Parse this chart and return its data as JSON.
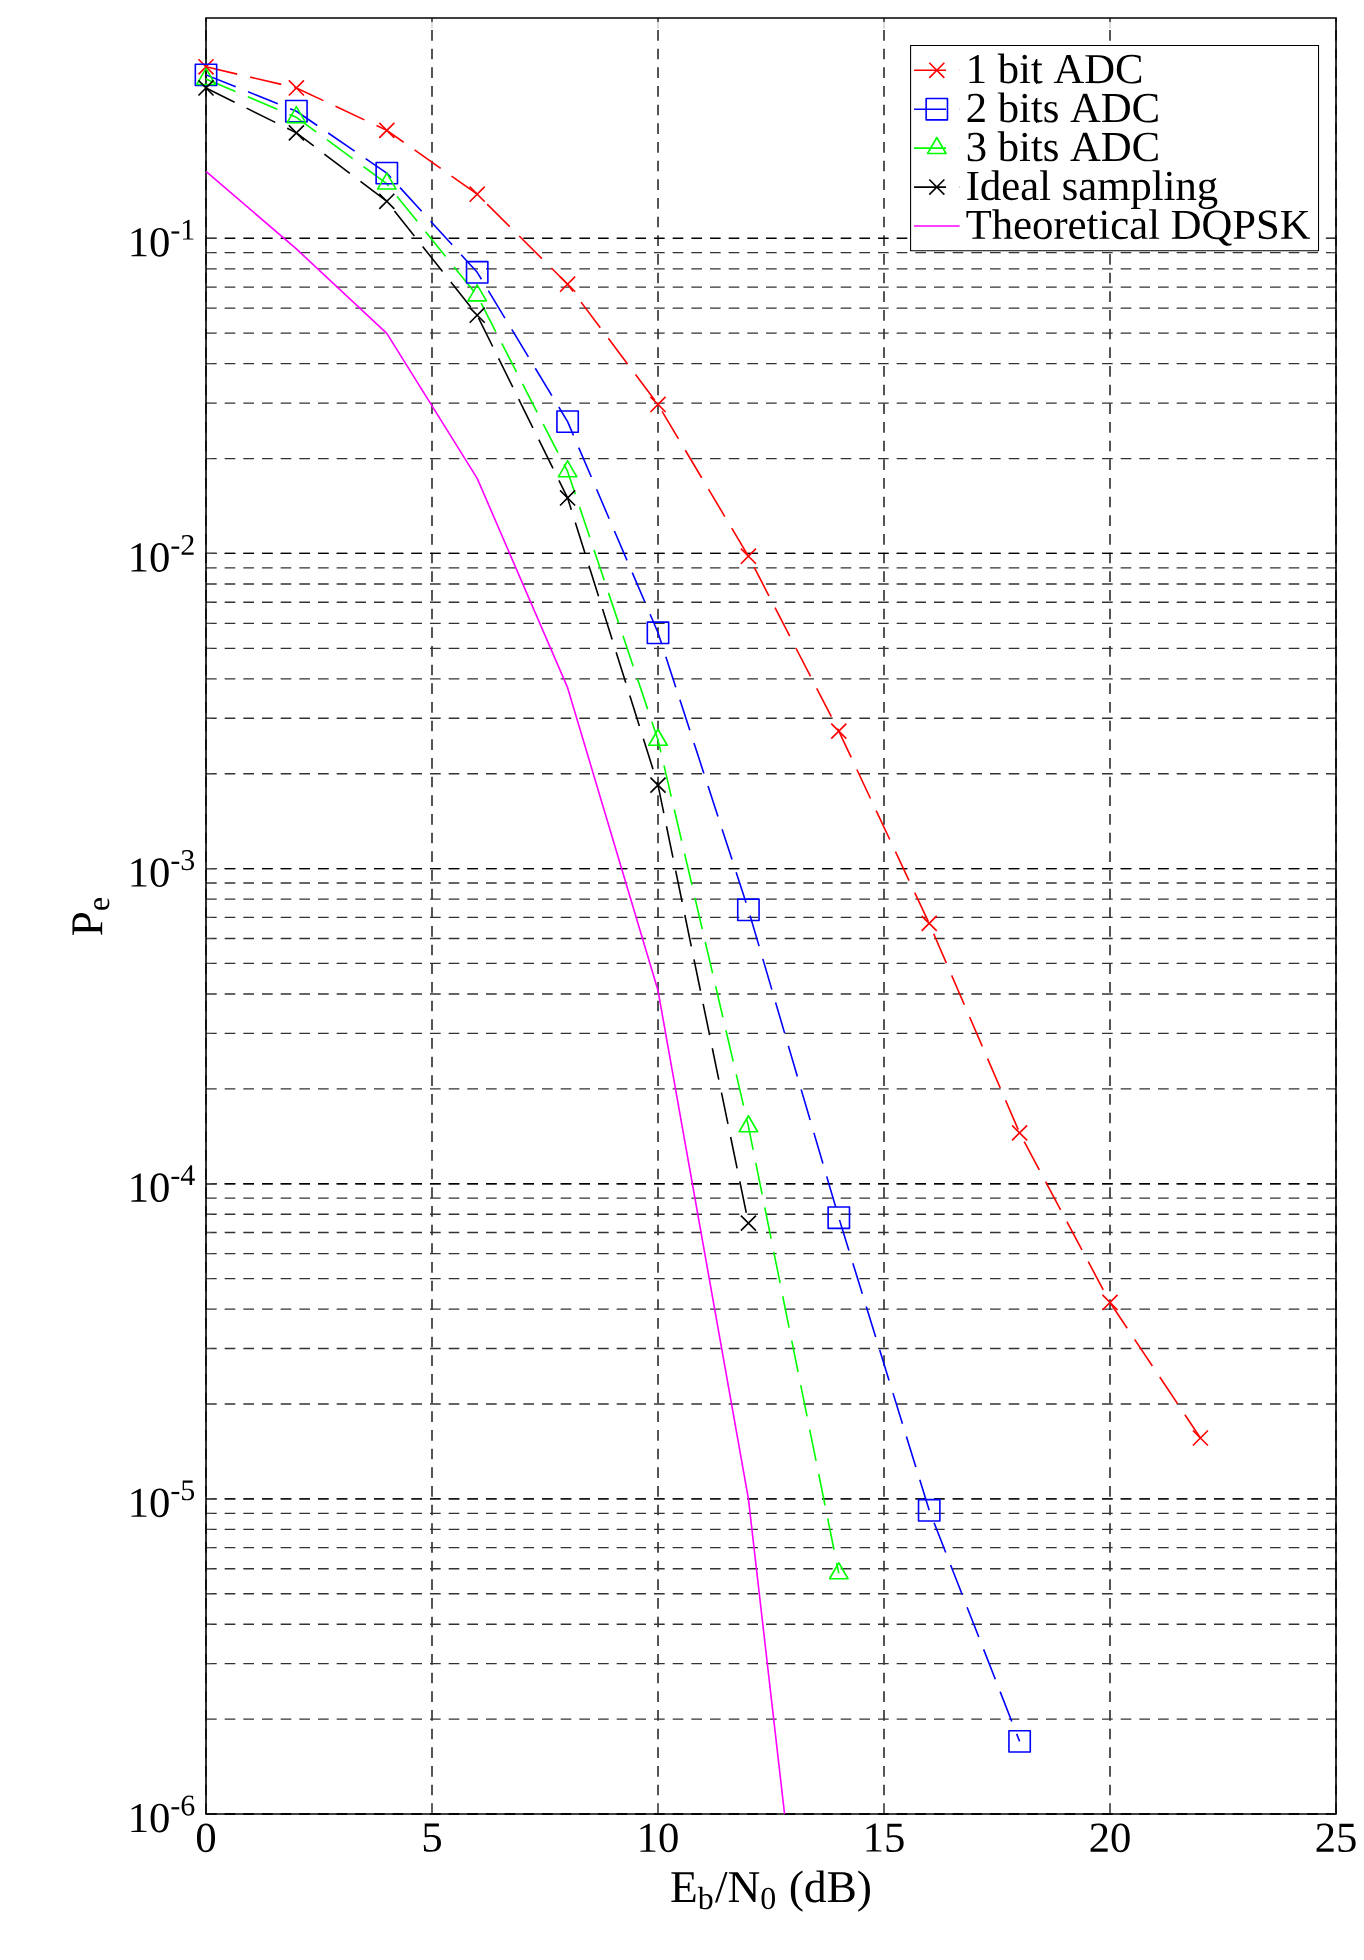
{
  "chart_data": {
    "type": "line",
    "xlabel": "E$_{b}$/N$_{0}$ (dB)",
    "ylabel": "P$_{e}$",
    "log": "y",
    "grid": true,
    "legend": "top right",
    "xlim": [
      0,
      25
    ],
    "xticks": [
      0,
      5,
      10,
      15,
      20,
      25
    ],
    "ylim": [
      1e-06,
      0.5
    ],
    "yticks": [
      {
        "value": 1e-06,
        "label": "10$^{-6}$"
      },
      {
        "value": 1e-05,
        "label": "10$^{-5}$"
      },
      {
        "value": 0.0001,
        "label": "10$^{-4}$"
      },
      {
        "value": 0.001,
        "label": "10$^{-3}$"
      },
      {
        "value": 0.01,
        "label": "10$^{-2}$"
      },
      {
        "value": 0.1,
        "label": "10$^{-1}$"
      }
    ],
    "series": [
      {
        "name": "1 bit ADC",
        "color": "#ff0000",
        "marker": "cross",
        "line_style": "dashed",
        "x": [
          0,
          2,
          4,
          6,
          8,
          10,
          12,
          14,
          16,
          18,
          20,
          22
        ],
        "values": [
          0.35,
          0.3,
          0.22,
          0.138,
          0.0715,
          0.0297,
          0.0098,
          0.00273,
          0.00067,
          0.000145,
          4.2e-05,
          1.56e-05
        ]
      },
      {
        "name": "2 bits ADC",
        "color": "#0000ff",
        "marker": "square",
        "line_style": "dashed",
        "x": [
          0,
          2,
          4,
          6,
          8,
          10,
          12,
          14,
          16,
          18
        ],
        "values": [
          0.33,
          0.253,
          0.161,
          0.078,
          0.0262,
          0.0056,
          0.00074,
          7.8e-05,
          9.2e-06,
          1.7e-06
        ]
      },
      {
        "name": "3 bits ADC",
        "color": "#00ff00",
        "marker": "triangle",
        "line_style": "dashed",
        "x": [
          0,
          2,
          4,
          6,
          8,
          10,
          12,
          14
        ],
        "values": [
          0.32,
          0.242,
          0.149,
          0.0658,
          0.0182,
          0.00256,
          0.000152,
          5.8e-06
        ]
      },
      {
        "name": "Ideal sampling",
        "color": "#000000",
        "marker": "cross",
        "line_style": "dashed",
        "x": [
          0,
          2,
          4,
          6,
          8,
          10,
          12
        ],
        "values": [
          0.3,
          0.216,
          0.131,
          0.057,
          0.015,
          0.00184,
          7.5e-05
        ]
      },
      {
        "name": "Theoretical DQPSK",
        "color": "#ff00ff",
        "marker": "none",
        "line_style": "solid",
        "x": [
          0,
          2,
          4,
          6,
          8,
          10,
          12,
          12.8
        ],
        "values": [
          0.163,
          0.0925,
          0.0499,
          0.0173,
          0.00375,
          0.00041,
          1e-05,
          1e-06
        ]
      }
    ]
  }
}
